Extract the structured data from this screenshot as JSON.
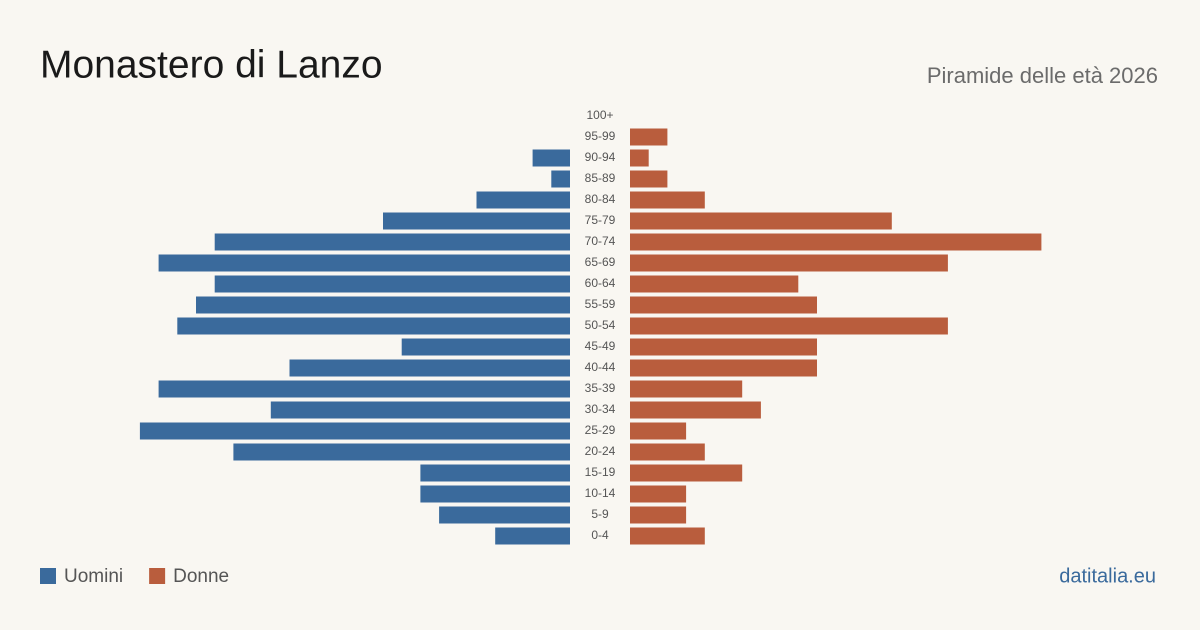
{
  "chart_data": {
    "type": "pyramid",
    "title": "Monastero di Lanzo",
    "subtitle": "Piramide delle età 2026",
    "source": "datitalia.eu",
    "categories": [
      "100+",
      "95-99",
      "90-94",
      "85-89",
      "80-84",
      "75-79",
      "70-74",
      "65-69",
      "60-64",
      "55-59",
      "50-54",
      "45-49",
      "40-44",
      "35-39",
      "30-34",
      "25-29",
      "20-24",
      "15-19",
      "10-14",
      "5-9",
      "0-4"
    ],
    "series": [
      {
        "name": "Uomini",
        "color": "#3a6a9c",
        "values": [
          0,
          0,
          2,
          1,
          5,
          10,
          19,
          22,
          19,
          20,
          21,
          9,
          15,
          22,
          16,
          23,
          18,
          8,
          8,
          7,
          4
        ]
      },
      {
        "name": "Donne",
        "color": "#b95d3d",
        "values": [
          0,
          2,
          1,
          2,
          4,
          14,
          22,
          17,
          9,
          10,
          17,
          10,
          10,
          6,
          7,
          3,
          4,
          6,
          3,
          3,
          4
        ]
      }
    ]
  }
}
